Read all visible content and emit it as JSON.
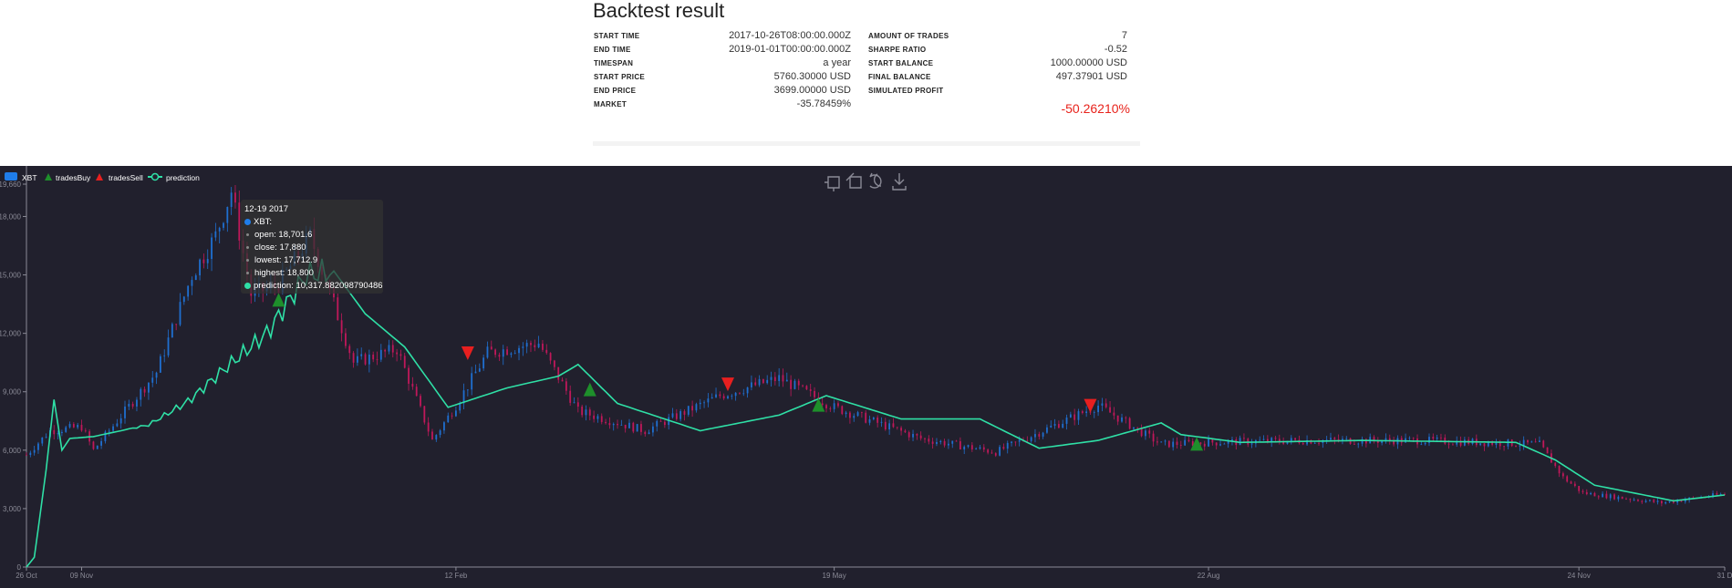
{
  "report": {
    "title": "Backtest result",
    "left": [
      {
        "label": "START TIME",
        "value": "2017-10-26T08:00:00.000Z"
      },
      {
        "label": "END TIME",
        "value": "2019-01-01T00:00:00.000Z"
      },
      {
        "label": "TIMESPAN",
        "value": "a year"
      },
      {
        "label": "START PRICE",
        "value": "5760.30000 USD"
      },
      {
        "label": "END PRICE",
        "value": "3699.00000 USD"
      },
      {
        "label": "MARKET",
        "value": "-35.78459%"
      }
    ],
    "right": [
      {
        "label": "AMOUNT OF TRADES",
        "value": "7"
      },
      {
        "label": "SHARPE RATIO",
        "value": "-0.52"
      },
      {
        "label": "START BALANCE",
        "value": "1000.00000 USD"
      },
      {
        "label": "FINAL BALANCE",
        "value": "497.37901 USD"
      },
      {
        "label": "SIMULATED PROFIT",
        "value": ""
      }
    ],
    "profit": "-50.26210%",
    "profit_color": "#e8221b"
  },
  "legend": [
    {
      "name": "XBT",
      "icon": "rect-icon",
      "color": "#1f7dea"
    },
    {
      "name": "tradesBuy",
      "icon": "triangle-up-icon",
      "color": "#1e8f2b"
    },
    {
      "name": "tradesSell",
      "icon": "triangle-up-icon",
      "color": "#e81f1f"
    },
    {
      "name": "prediction",
      "icon": "line-dot-icon",
      "color": "#2fe0a6"
    }
  ],
  "toolbox": [
    "zoom-icon",
    "zoom-reset-icon",
    "restore-icon",
    "save-image-icon"
  ],
  "tooltip": {
    "date": "12-19 2017",
    "series": "XBT:",
    "open": "open: 18,701.6",
    "close": "close: 17,880",
    "lowest": "lowest: 17,712.9",
    "highest": "highest: 18,800",
    "prediction": "prediction: 10,317.882098790486"
  },
  "colors": {
    "background": "#21202d",
    "up": "#1f6fd0",
    "down": "#c0185a",
    "prediction": "#2fe0a6",
    "buy": "#1e8f2b",
    "sell": "#e81f1f",
    "axis": "#8a8a96"
  },
  "chart_data": {
    "type": "candlestick",
    "x_range": [
      "2017-10-26",
      "2018-12-31"
    ],
    "x_ticks": [
      "26 Oct",
      "09 Nov",
      "12 Feb",
      "19 May",
      "22 Aug",
      "24 Nov",
      "31 D"
    ],
    "y_ticks": [
      "0",
      "3,000",
      "6,000",
      "9,000",
      "12,000",
      "15,000",
      "18,000",
      "19,660"
    ],
    "ylim": [
      0,
      19660
    ],
    "price_path": [
      [
        "2017-10-26",
        5760
      ],
      [
        "2017-11-01",
        7000
      ],
      [
        "2017-11-09",
        7200
      ],
      [
        "2017-11-12",
        6000
      ],
      [
        "2017-11-20",
        8000
      ],
      [
        "2017-11-28",
        10000
      ],
      [
        "2017-12-07",
        15000
      ],
      [
        "2017-12-13",
        17000
      ],
      [
        "2017-12-17",
        19300
      ],
      [
        "2017-12-22",
        14000
      ],
      [
        "2017-12-29",
        14500
      ],
      [
        "2018-01-06",
        17000
      ],
      [
        "2018-01-12",
        13500
      ],
      [
        "2018-01-17",
        10500
      ],
      [
        "2018-01-28",
        11200
      ],
      [
        "2018-02-06",
        6500
      ],
      [
        "2018-02-12",
        8300
      ],
      [
        "2018-02-20",
        11000
      ],
      [
        "2018-03-05",
        11500
      ],
      [
        "2018-03-15",
        8000
      ],
      [
        "2018-04-01",
        7000
      ],
      [
        "2018-04-20",
        8800
      ],
      [
        "2018-05-05",
        9700
      ],
      [
        "2018-05-19",
        8200
      ],
      [
        "2018-06-10",
        6600
      ],
      [
        "2018-06-29",
        5900
      ],
      [
        "2018-07-25",
        8300
      ],
      [
        "2018-08-10",
        6300
      ],
      [
        "2018-08-22",
        6400
      ],
      [
        "2018-09-15",
        6500
      ],
      [
        "2018-10-15",
        6500
      ],
      [
        "2018-11-14",
        6300
      ],
      [
        "2018-11-20",
        4600
      ],
      [
        "2018-11-25",
        3800
      ],
      [
        "2018-12-15",
        3300
      ],
      [
        "2018-12-31",
        3750
      ]
    ],
    "prediction_path": [
      [
        "2017-10-26",
        0
      ],
      [
        "2017-10-28",
        500
      ],
      [
        "2017-10-31",
        5000
      ],
      [
        "2017-11-02",
        8600
      ],
      [
        "2017-11-04",
        6000
      ],
      [
        "2017-11-06",
        6600
      ],
      [
        "2017-11-12",
        6700
      ],
      [
        "2017-11-26",
        7300
      ],
      [
        "2017-12-06",
        8500
      ],
      [
        "2017-12-16",
        10300
      ],
      [
        "2017-12-26",
        12000
      ],
      [
        "2018-01-05",
        15000
      ],
      [
        "2018-01-12",
        15200
      ],
      [
        "2018-01-20",
        13000
      ],
      [
        "2018-01-30",
        11300
      ],
      [
        "2018-02-10",
        8200
      ],
      [
        "2018-02-25",
        9200
      ],
      [
        "2018-03-10",
        9800
      ],
      [
        "2018-03-15",
        10400
      ],
      [
        "2018-03-25",
        8400
      ],
      [
        "2018-04-15",
        7000
      ],
      [
        "2018-05-05",
        7800
      ],
      [
        "2018-05-17",
        8800
      ],
      [
        "2018-06-05",
        7600
      ],
      [
        "2018-06-25",
        7600
      ],
      [
        "2018-07-10",
        6100
      ],
      [
        "2018-07-25",
        6500
      ],
      [
        "2018-08-10",
        7400
      ],
      [
        "2018-08-15",
        6800
      ],
      [
        "2018-08-30",
        6400
      ],
      [
        "2018-09-30",
        6500
      ],
      [
        "2018-11-08",
        6400
      ],
      [
        "2018-11-18",
        5500
      ],
      [
        "2018-11-28",
        4200
      ],
      [
        "2018-12-18",
        3400
      ],
      [
        "2018-12-31",
        3700
      ]
    ],
    "trades_buy": [
      [
        "2017-12-29",
        13700
      ],
      [
        "2018-03-18",
        9100
      ],
      [
        "2018-05-15",
        8300
      ],
      [
        "2018-08-19",
        6300
      ]
    ],
    "trades_sell": [
      [
        "2018-02-15",
        11000
      ],
      [
        "2018-04-22",
        9400
      ],
      [
        "2018-07-23",
        8300
      ]
    ]
  }
}
